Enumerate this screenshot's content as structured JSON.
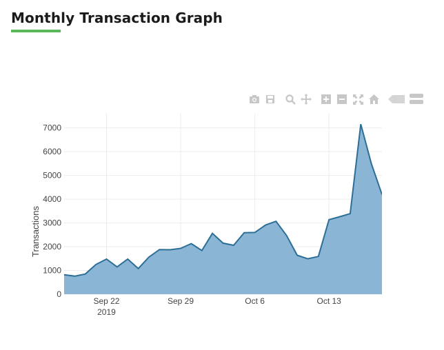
{
  "page": {
    "title": "Monthly Transaction Graph"
  },
  "modebar": {
    "buttons": [
      {
        "name": "camera-icon"
      },
      {
        "name": "save-icon"
      },
      {
        "name": "zoom-icon"
      },
      {
        "name": "pan-icon"
      },
      {
        "name": "zoom-in-icon"
      },
      {
        "name": "zoom-out-icon"
      },
      {
        "name": "autoscale-icon"
      },
      {
        "name": "home-icon"
      },
      {
        "name": "spike-lines-icon"
      },
      {
        "name": "compare-data-icon"
      }
    ]
  },
  "chart_data": {
    "type": "area",
    "title": "",
    "xlabel": "",
    "ylabel": "Transactions",
    "grid": true,
    "colors": {
      "line": "#2c6e96",
      "fill": "#8ab5d5",
      "accent": "#5cb85c"
    },
    "ylim": [
      0,
      7600
    ],
    "xlim": [
      "2019-09-18",
      "2019-10-18"
    ],
    "yticks": [
      0,
      1000,
      2000,
      3000,
      4000,
      5000,
      6000,
      7000
    ],
    "xticks": [
      {
        "date": "2019-09-22",
        "label": "Sep 22",
        "sublabel": "2019"
      },
      {
        "date": "2019-09-29",
        "label": "Sep 29",
        "sublabel": ""
      },
      {
        "date": "2019-10-06",
        "label": "Oct 6",
        "sublabel": ""
      },
      {
        "date": "2019-10-13",
        "label": "Oct 13",
        "sublabel": ""
      }
    ],
    "x": [
      "2019-09-18",
      "2019-09-19",
      "2019-09-20",
      "2019-09-21",
      "2019-09-22",
      "2019-09-23",
      "2019-09-24",
      "2019-09-25",
      "2019-09-26",
      "2019-09-27",
      "2019-09-28",
      "2019-09-29",
      "2019-09-30",
      "2019-10-01",
      "2019-10-02",
      "2019-10-03",
      "2019-10-04",
      "2019-10-05",
      "2019-10-06",
      "2019-10-07",
      "2019-10-08",
      "2019-10-09",
      "2019-10-10",
      "2019-10-11",
      "2019-10-12",
      "2019-10-13",
      "2019-10-14",
      "2019-10-15",
      "2019-10-16",
      "2019-10-17",
      "2019-10-18"
    ],
    "values": [
      820,
      760,
      850,
      1250,
      1480,
      1150,
      1480,
      1080,
      1560,
      1880,
      1870,
      1930,
      2130,
      1840,
      2560,
      2150,
      2060,
      2590,
      2600,
      2910,
      3070,
      2470,
      1640,
      1490,
      1590,
      3140,
      3260,
      3390,
      7160,
      5500,
      4200
    ]
  }
}
